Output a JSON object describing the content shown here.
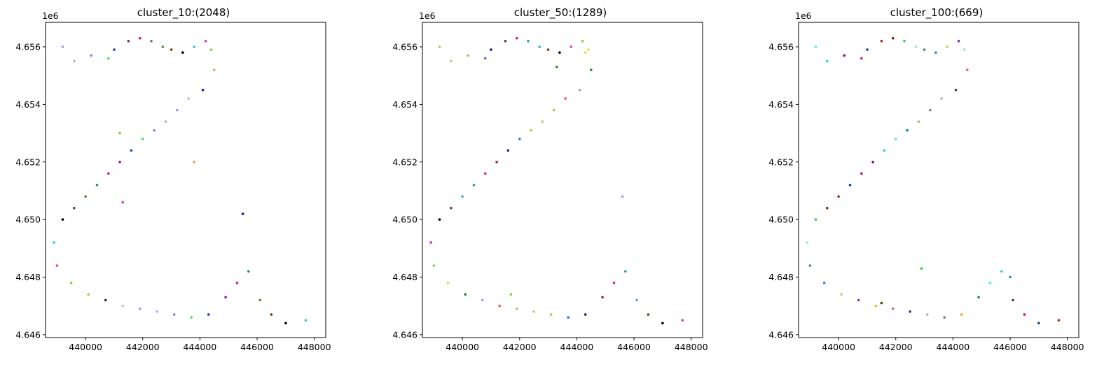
{
  "chart_data": [
    {
      "type": "scatter",
      "title": "cluster_10:(2048)",
      "xlabel": "",
      "ylabel": "",
      "xlim": [
        438600,
        448400
      ],
      "ylim": [
        4645900,
        4656850
      ],
      "x_ticks": [
        "440000",
        "442000",
        "444000",
        "446000",
        "448000"
      ],
      "y_ticks": [
        "4.646",
        "4.648",
        "4.650",
        "4.652",
        "4.654",
        "4.656"
      ],
      "y_offset_label": "1e6",
      "grid": false,
      "legend": "none",
      "point_count": 2048,
      "palette": [
        "#b18cf0",
        "#c3a1f2",
        "#a26ae6",
        "#3be06b",
        "#1f3fd1",
        "#8b1a8b",
        "#e6194b",
        "#2b8a8a",
        "#4f8f2a",
        "#7b3f00",
        "#000000",
        "#2ec7d6",
        "#d62fd6",
        "#7dd62f",
        "#e8a33d",
        "#1a1a9e",
        "#c0c0c0"
      ],
      "series": [
        {
          "x": [
            439200,
            439600,
            440200,
            440800,
            441000,
            441500,
            441900,
            442300,
            442700,
            443000,
            443400,
            443800,
            444200,
            444400,
            444500,
            444100,
            443600,
            443200,
            442800,
            442400,
            442000,
            441600,
            441200,
            440800,
            440400,
            440000,
            439600,
            439200,
            438900,
            439000,
            439500,
            440100,
            440700,
            441300,
            441900,
            442500,
            443100,
            443700,
            444300,
            444900,
            445300,
            445700,
            446100,
            446500,
            447000,
            447700,
            441300,
            441200,
            443800,
            445500
          ],
          "y": [
            4656000,
            4655500,
            4655700,
            4655600,
            4655900,
            4656200,
            4656300,
            4656200,
            4656000,
            4655900,
            4655800,
            4656000,
            4656200,
            4655900,
            4655200,
            4654500,
            4654200,
            4653800,
            4653400,
            4653100,
            4652800,
            4652400,
            4652000,
            4651600,
            4651200,
            4650800,
            4650400,
            4650000,
            4649200,
            4648400,
            4647800,
            4647400,
            4647200,
            4647000,
            4646900,
            4646800,
            4646700,
            4646600,
            4646700,
            4647300,
            4647800,
            4648200,
            4647200,
            4646700,
            4646400,
            4646500,
            4650600,
            4653000,
            4652000,
            4650200
          ]
        }
      ]
    },
    {
      "type": "scatter",
      "title": "cluster_50:(1289)",
      "xlabel": "",
      "ylabel": "",
      "xlim": [
        438600,
        448400
      ],
      "ylim": [
        4645900,
        4656850
      ],
      "x_ticks": [
        "440000",
        "442000",
        "444000",
        "446000",
        "448000"
      ],
      "y_ticks": [
        "4.646",
        "4.648",
        "4.650",
        "4.652",
        "4.654",
        "4.656"
      ],
      "y_offset_label": "1e6",
      "grid": false,
      "legend": "none",
      "point_count": 1289,
      "palette": [
        "#c9b458",
        "#d4c26a",
        "#b8c43a",
        "#3a6fd8",
        "#1b1b8f",
        "#8f1f5a",
        "#e0208c",
        "#1fa89a",
        "#2fb0e0",
        "#7a3f1f",
        "#000000",
        "#d62fd6",
        "#7dd62f",
        "#e8d93d",
        "#2a7f2a",
        "#a0a0e0",
        "#ff5050"
      ],
      "series": [
        {
          "x": [
            439200,
            439600,
            440200,
            440800,
            441000,
            441500,
            441900,
            442300,
            442700,
            443000,
            443400,
            443800,
            444200,
            444400,
            444500,
            444100,
            443600,
            443200,
            442800,
            442400,
            442000,
            441600,
            441200,
            440800,
            440400,
            440000,
            439600,
            439200,
            438900,
            439000,
            439500,
            440100,
            440700,
            441300,
            441900,
            442500,
            443100,
            443700,
            444300,
            444900,
            445300,
            445700,
            446100,
            446500,
            447000,
            447700,
            441700,
            444300,
            443300,
            445600
          ],
          "y": [
            4656000,
            4655500,
            4655700,
            4655600,
            4655900,
            4656200,
            4656300,
            4656200,
            4656000,
            4655900,
            4655800,
            4656000,
            4656200,
            4655900,
            4655200,
            4654500,
            4654200,
            4653800,
            4653400,
            4653100,
            4652800,
            4652400,
            4652000,
            4651600,
            4651200,
            4650800,
            4650400,
            4650000,
            4649200,
            4648400,
            4647800,
            4647400,
            4647200,
            4647000,
            4646900,
            4646800,
            4646700,
            4646600,
            4646700,
            4647300,
            4647800,
            4648200,
            4647200,
            4646700,
            4646400,
            4646500,
            4647400,
            4655800,
            4655300,
            4650800
          ]
        }
      ]
    },
    {
      "type": "scatter",
      "title": "cluster_100:(669)",
      "xlabel": "",
      "ylabel": "",
      "xlim": [
        438600,
        448400
      ],
      "ylim": [
        4645900,
        4656850
      ],
      "x_ticks": [
        "440000",
        "442000",
        "444000",
        "446000",
        "448000"
      ],
      "y_ticks": [
        "4.646",
        "4.648",
        "4.650",
        "4.652",
        "4.654",
        "4.656"
      ],
      "y_offset_label": "1e6",
      "grid": false,
      "legend": "none",
      "point_count": 669,
      "palette": [
        "#55f0c0",
        "#1de0a0",
        "#6b1a6b",
        "#e01050",
        "#1040c0",
        "#c02010",
        "#5a3a0a",
        "#2ad050",
        "#7ff0f0",
        "#20a060",
        "#4080e0",
        "#e0c060",
        "#9020d0",
        "#a0e020",
        "#e06080",
        "#304080",
        "#d0a0d0",
        "#808080",
        "#f0a040",
        "#008080"
      ],
      "series": [
        {
          "x": [
            439200,
            439600,
            440200,
            440800,
            441000,
            441500,
            441900,
            442300,
            442700,
            443000,
            443400,
            443800,
            444200,
            444400,
            444500,
            444100,
            443600,
            443200,
            442800,
            442400,
            442000,
            441600,
            441200,
            440800,
            440400,
            440000,
            439600,
            439200,
            438900,
            439000,
            439500,
            440100,
            440700,
            441300,
            441900,
            442500,
            443100,
            443700,
            444300,
            444900,
            445300,
            445700,
            446100,
            446500,
            447000,
            447700,
            441500,
            442900,
            444400,
            446000
          ],
          "y": [
            4656000,
            4655500,
            4655700,
            4655600,
            4655900,
            4656200,
            4656300,
            4656200,
            4656000,
            4655900,
            4655800,
            4656000,
            4656200,
            4655900,
            4655200,
            4654500,
            4654200,
            4653800,
            4653400,
            4653100,
            4652800,
            4652400,
            4652000,
            4651600,
            4651200,
            4650800,
            4650400,
            4650000,
            4649200,
            4648400,
            4647800,
            4647400,
            4647200,
            4647000,
            4646900,
            4646800,
            4646700,
            4646600,
            4646700,
            4647300,
            4647800,
            4648200,
            4647200,
            4646700,
            4646400,
            4646500,
            4647100,
            4648300,
            4655900,
            4648000
          ]
        }
      ]
    }
  ]
}
